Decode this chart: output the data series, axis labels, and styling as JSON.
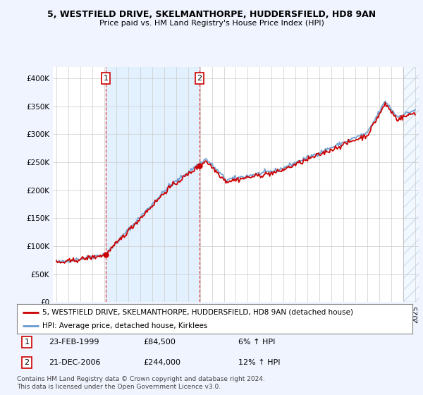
{
  "title": "5, WESTFIELD DRIVE, SKELMANTHORPE, HUDDERSFIELD, HD8 9AN",
  "subtitle": "Price paid vs. HM Land Registry's House Price Index (HPI)",
  "legend_label_red": "5, WESTFIELD DRIVE, SKELMANTHORPE, HUDDERSFIELD, HD8 9AN (detached house)",
  "legend_label_blue": "HPI: Average price, detached house, Kirklees",
  "transaction1_date": "23-FEB-1999",
  "transaction1_price": 84500,
  "transaction1_hpi": "6% ↑ HPI",
  "transaction2_date": "21-DEC-2006",
  "transaction2_price": 244000,
  "transaction2_hpi": "12% ↑ HPI",
  "footer": "Contains HM Land Registry data © Crown copyright and database right 2024.\nThis data is licensed under the Open Government Licence v3.0.",
  "ylim": [
    0,
    420000
  ],
  "yticks": [
    0,
    50000,
    100000,
    150000,
    200000,
    250000,
    300000,
    350000,
    400000
  ],
  "background_color": "#f0f4ff",
  "plot_bg": "#ffffff",
  "red_color": "#cc0000",
  "blue_color": "#6699cc",
  "shade_color": "#ddeeff",
  "t1_x": 1999.12,
  "t1_y": 84500,
  "t2_x": 2006.96,
  "t2_y": 244000,
  "xmin": 1994.7,
  "xmax": 2025.3
}
